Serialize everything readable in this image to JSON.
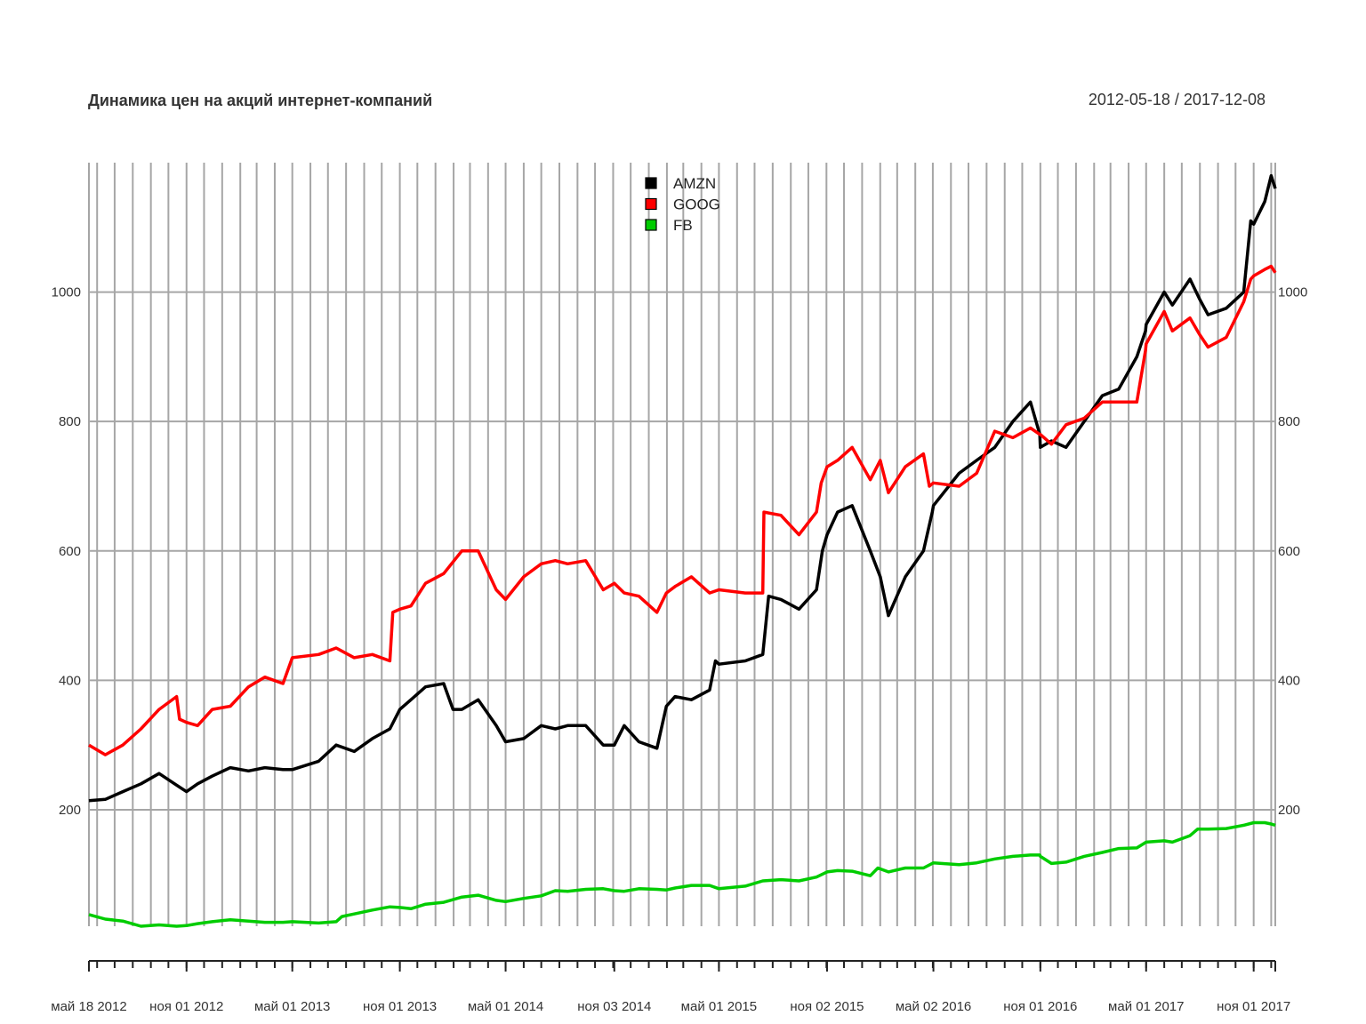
{
  "chart_data": {
    "type": "line",
    "title": "Динамика цен на акций интернет-компаний",
    "date_range": "2012-05-18 / 2017-12-08",
    "ylim": [
      20,
      1200
    ],
    "y_ticks": [
      200,
      400,
      600,
      800,
      1000
    ],
    "x_range": [
      "2012-05-18",
      "2017-12-08"
    ],
    "x_tick_labels": [
      {
        "date": "2012-05-18",
        "label": "май 18 2012"
      },
      {
        "date": "2012-11-01",
        "label": "ноя 01 2012"
      },
      {
        "date": "2013-05-01",
        "label": "май 01 2013"
      },
      {
        "date": "2013-11-01",
        "label": "ноя 01 2013"
      },
      {
        "date": "2014-05-01",
        "label": "май 01 2014"
      },
      {
        "date": "2014-11-03",
        "label": "ноя 03 2014"
      },
      {
        "date": "2015-05-01",
        "label": "май 01 2015"
      },
      {
        "date": "2015-11-02",
        "label": "ноя 02 2015"
      },
      {
        "date": "2016-05-02",
        "label": "май 02 2016"
      },
      {
        "date": "2016-11-01",
        "label": "ноя 01 2016"
      },
      {
        "date": "2017-05-01",
        "label": "май 01 2017"
      },
      {
        "date": "2017-11-01",
        "label": "ноя 01 2017"
      }
    ],
    "grid": "vertical monthly + horizontal at y ticks",
    "legend_position": "top-center",
    "series": [
      {
        "name": "AMZN",
        "color": "#000000",
        "points": [
          [
            "2012-05-18",
            214
          ],
          [
            "2012-06-15",
            216
          ],
          [
            "2012-07-15",
            228
          ],
          [
            "2012-08-15",
            240
          ],
          [
            "2012-09-15",
            256
          ],
          [
            "2012-10-15",
            238
          ],
          [
            "2012-11-01",
            228
          ],
          [
            "2012-11-20",
            240
          ],
          [
            "2012-12-15",
            252
          ],
          [
            "2013-01-15",
            265
          ],
          [
            "2013-02-15",
            260
          ],
          [
            "2013-03-15",
            265
          ],
          [
            "2013-04-15",
            262
          ],
          [
            "2013-05-01",
            262
          ],
          [
            "2013-06-15",
            275
          ],
          [
            "2013-07-15",
            300
          ],
          [
            "2013-08-15",
            290
          ],
          [
            "2013-09-15",
            310
          ],
          [
            "2013-10-15",
            325
          ],
          [
            "2013-11-01",
            355
          ],
          [
            "2013-11-20",
            370
          ],
          [
            "2013-12-15",
            390
          ],
          [
            "2014-01-15",
            395
          ],
          [
            "2014-01-31",
            355
          ],
          [
            "2014-02-15",
            355
          ],
          [
            "2014-03-15",
            370
          ],
          [
            "2014-04-15",
            330
          ],
          [
            "2014-05-01",
            305
          ],
          [
            "2014-06-01",
            310
          ],
          [
            "2014-07-01",
            330
          ],
          [
            "2014-07-25",
            325
          ],
          [
            "2014-08-15",
            330
          ],
          [
            "2014-09-15",
            330
          ],
          [
            "2014-10-15",
            300
          ],
          [
            "2014-11-03",
            300
          ],
          [
            "2014-11-20",
            330
          ],
          [
            "2014-12-15",
            305
          ],
          [
            "2015-01-15",
            295
          ],
          [
            "2015-01-31",
            360
          ],
          [
            "2015-02-15",
            375
          ],
          [
            "2015-03-15",
            370
          ],
          [
            "2015-04-15",
            385
          ],
          [
            "2015-04-25",
            430
          ],
          [
            "2015-05-01",
            425
          ],
          [
            "2015-06-15",
            430
          ],
          [
            "2015-07-15",
            440
          ],
          [
            "2015-07-25",
            530
          ],
          [
            "2015-08-15",
            525
          ],
          [
            "2015-09-15",
            510
          ],
          [
            "2015-10-15",
            540
          ],
          [
            "2015-10-25",
            600
          ],
          [
            "2015-11-02",
            625
          ],
          [
            "2015-11-20",
            660
          ],
          [
            "2015-12-15",
            670
          ],
          [
            "2016-01-15",
            600
          ],
          [
            "2016-02-01",
            560
          ],
          [
            "2016-02-15",
            500
          ],
          [
            "2016-03-15",
            560
          ],
          [
            "2016-04-15",
            600
          ],
          [
            "2016-04-30",
            660
          ],
          [
            "2016-05-02",
            670
          ],
          [
            "2016-06-15",
            720
          ],
          [
            "2016-07-15",
            740
          ],
          [
            "2016-08-15",
            760
          ],
          [
            "2016-09-15",
            800
          ],
          [
            "2016-10-15",
            830
          ],
          [
            "2016-10-31",
            780
          ],
          [
            "2016-11-01",
            760
          ],
          [
            "2016-11-20",
            770
          ],
          [
            "2016-12-15",
            760
          ],
          [
            "2017-01-15",
            800
          ],
          [
            "2017-02-15",
            840
          ],
          [
            "2017-03-15",
            850
          ],
          [
            "2017-04-15",
            900
          ],
          [
            "2017-04-30",
            940
          ],
          [
            "2017-05-01",
            950
          ],
          [
            "2017-06-01",
            1000
          ],
          [
            "2017-06-15",
            980
          ],
          [
            "2017-07-15",
            1020
          ],
          [
            "2017-07-31",
            990
          ],
          [
            "2017-08-15",
            965
          ],
          [
            "2017-09-15",
            975
          ],
          [
            "2017-10-15",
            1000
          ],
          [
            "2017-10-27",
            1110
          ],
          [
            "2017-11-01",
            1105
          ],
          [
            "2017-11-20",
            1140
          ],
          [
            "2017-12-01",
            1180
          ],
          [
            "2017-12-08",
            1160
          ]
        ]
      },
      {
        "name": "GOOG",
        "color": "#ff0000",
        "points": [
          [
            "2012-05-18",
            300
          ],
          [
            "2012-06-15",
            285
          ],
          [
            "2012-07-15",
            300
          ],
          [
            "2012-08-15",
            325
          ],
          [
            "2012-09-15",
            355
          ],
          [
            "2012-10-15",
            375
          ],
          [
            "2012-10-20",
            340
          ],
          [
            "2012-11-01",
            335
          ],
          [
            "2012-11-20",
            330
          ],
          [
            "2012-12-15",
            355
          ],
          [
            "2013-01-15",
            360
          ],
          [
            "2013-02-15",
            390
          ],
          [
            "2013-03-15",
            405
          ],
          [
            "2013-04-15",
            395
          ],
          [
            "2013-05-01",
            435
          ],
          [
            "2013-06-15",
            440
          ],
          [
            "2013-07-15",
            450
          ],
          [
            "2013-08-15",
            435
          ],
          [
            "2013-09-15",
            440
          ],
          [
            "2013-10-15",
            430
          ],
          [
            "2013-10-20",
            505
          ],
          [
            "2013-11-01",
            510
          ],
          [
            "2013-11-20",
            515
          ],
          [
            "2013-12-15",
            550
          ],
          [
            "2014-01-15",
            565
          ],
          [
            "2014-02-15",
            600
          ],
          [
            "2014-03-15",
            600
          ],
          [
            "2014-04-15",
            540
          ],
          [
            "2014-05-01",
            525
          ],
          [
            "2014-06-01",
            560
          ],
          [
            "2014-07-01",
            580
          ],
          [
            "2014-07-25",
            585
          ],
          [
            "2014-08-15",
            580
          ],
          [
            "2014-09-15",
            585
          ],
          [
            "2014-10-15",
            540
          ],
          [
            "2014-11-03",
            550
          ],
          [
            "2014-11-20",
            535
          ],
          [
            "2014-12-15",
            530
          ],
          [
            "2015-01-15",
            505
          ],
          [
            "2015-01-31",
            535
          ],
          [
            "2015-02-15",
            545
          ],
          [
            "2015-03-15",
            560
          ],
          [
            "2015-04-15",
            535
          ],
          [
            "2015-05-01",
            540
          ],
          [
            "2015-06-15",
            535
          ],
          [
            "2015-07-15",
            535
          ],
          [
            "2015-07-17",
            660
          ],
          [
            "2015-08-15",
            655
          ],
          [
            "2015-09-15",
            625
          ],
          [
            "2015-10-15",
            660
          ],
          [
            "2015-10-23",
            705
          ],
          [
            "2015-11-02",
            730
          ],
          [
            "2015-11-20",
            740
          ],
          [
            "2015-12-15",
            760
          ],
          [
            "2016-01-15",
            710
          ],
          [
            "2016-02-01",
            740
          ],
          [
            "2016-02-15",
            690
          ],
          [
            "2016-03-15",
            730
          ],
          [
            "2016-04-15",
            750
          ],
          [
            "2016-04-25",
            700
          ],
          [
            "2016-05-02",
            705
          ],
          [
            "2016-06-15",
            700
          ],
          [
            "2016-07-15",
            720
          ],
          [
            "2016-08-15",
            785
          ],
          [
            "2016-09-15",
            775
          ],
          [
            "2016-10-15",
            790
          ],
          [
            "2016-10-31",
            780
          ],
          [
            "2016-11-01",
            780
          ],
          [
            "2016-11-20",
            765
          ],
          [
            "2016-12-15",
            795
          ],
          [
            "2017-01-15",
            805
          ],
          [
            "2017-02-15",
            830
          ],
          [
            "2017-03-15",
            830
          ],
          [
            "2017-04-15",
            830
          ],
          [
            "2017-04-30",
            910
          ],
          [
            "2017-05-01",
            920
          ],
          [
            "2017-06-01",
            970
          ],
          [
            "2017-06-15",
            940
          ],
          [
            "2017-07-15",
            960
          ],
          [
            "2017-07-31",
            935
          ],
          [
            "2017-08-15",
            915
          ],
          [
            "2017-09-15",
            930
          ],
          [
            "2017-10-15",
            985
          ],
          [
            "2017-10-27",
            1020
          ],
          [
            "2017-11-01",
            1025
          ],
          [
            "2017-11-20",
            1035
          ],
          [
            "2017-12-01",
            1040
          ],
          [
            "2017-12-08",
            1030
          ]
        ]
      },
      {
        "name": "FB",
        "color": "#00cc00",
        "points": [
          [
            "2012-05-18",
            38
          ],
          [
            "2012-06-15",
            31
          ],
          [
            "2012-07-15",
            28
          ],
          [
            "2012-08-15",
            20
          ],
          [
            "2012-09-15",
            22
          ],
          [
            "2012-10-15",
            20
          ],
          [
            "2012-11-01",
            21
          ],
          [
            "2012-11-20",
            24
          ],
          [
            "2012-12-15",
            27
          ],
          [
            "2013-01-15",
            30
          ],
          [
            "2013-02-15",
            28
          ],
          [
            "2013-03-15",
            26
          ],
          [
            "2013-04-15",
            26
          ],
          [
            "2013-05-01",
            27
          ],
          [
            "2013-06-15",
            25
          ],
          [
            "2013-07-15",
            27
          ],
          [
            "2013-07-25",
            35
          ],
          [
            "2013-08-15",
            39
          ],
          [
            "2013-09-15",
            45
          ],
          [
            "2013-10-15",
            50
          ],
          [
            "2013-11-01",
            49
          ],
          [
            "2013-11-20",
            47
          ],
          [
            "2013-12-15",
            54
          ],
          [
            "2014-01-15",
            57
          ],
          [
            "2014-02-15",
            65
          ],
          [
            "2014-03-15",
            68
          ],
          [
            "2014-04-15",
            60
          ],
          [
            "2014-05-01",
            58
          ],
          [
            "2014-06-01",
            63
          ],
          [
            "2014-07-01",
            67
          ],
          [
            "2014-07-25",
            75
          ],
          [
            "2014-08-15",
            74
          ],
          [
            "2014-09-15",
            77
          ],
          [
            "2014-10-15",
            78
          ],
          [
            "2014-11-03",
            75
          ],
          [
            "2014-11-20",
            74
          ],
          [
            "2014-12-15",
            78
          ],
          [
            "2015-01-15",
            77
          ],
          [
            "2015-01-31",
            76
          ],
          [
            "2015-02-15",
            79
          ],
          [
            "2015-03-15",
            83
          ],
          [
            "2015-04-15",
            83
          ],
          [
            "2015-05-01",
            78
          ],
          [
            "2015-06-15",
            82
          ],
          [
            "2015-07-15",
            90
          ],
          [
            "2015-08-15",
            92
          ],
          [
            "2015-09-15",
            90
          ],
          [
            "2015-10-15",
            96
          ],
          [
            "2015-11-02",
            104
          ],
          [
            "2015-11-20",
            106
          ],
          [
            "2015-12-15",
            105
          ],
          [
            "2016-01-15",
            98
          ],
          [
            "2016-01-28",
            110
          ],
          [
            "2016-02-15",
            104
          ],
          [
            "2016-03-15",
            110
          ],
          [
            "2016-04-15",
            110
          ],
          [
            "2016-05-02",
            118
          ],
          [
            "2016-06-15",
            115
          ],
          [
            "2016-07-15",
            118
          ],
          [
            "2016-08-15",
            124
          ],
          [
            "2016-09-15",
            128
          ],
          [
            "2016-10-15",
            130
          ],
          [
            "2016-10-31",
            130
          ],
          [
            "2016-11-01",
            128
          ],
          [
            "2016-11-20",
            117
          ],
          [
            "2016-12-15",
            119
          ],
          [
            "2017-01-15",
            128
          ],
          [
            "2017-02-15",
            134
          ],
          [
            "2017-03-15",
            140
          ],
          [
            "2017-04-15",
            141
          ],
          [
            "2017-05-01",
            150
          ],
          [
            "2017-06-01",
            152
          ],
          [
            "2017-06-15",
            150
          ],
          [
            "2017-07-15",
            160
          ],
          [
            "2017-07-28",
            170
          ],
          [
            "2017-08-15",
            170
          ],
          [
            "2017-09-15",
            171
          ],
          [
            "2017-10-15",
            176
          ],
          [
            "2017-11-01",
            180
          ],
          [
            "2017-11-20",
            180
          ],
          [
            "2017-12-01",
            178
          ],
          [
            "2017-12-08",
            176
          ]
        ]
      }
    ]
  }
}
